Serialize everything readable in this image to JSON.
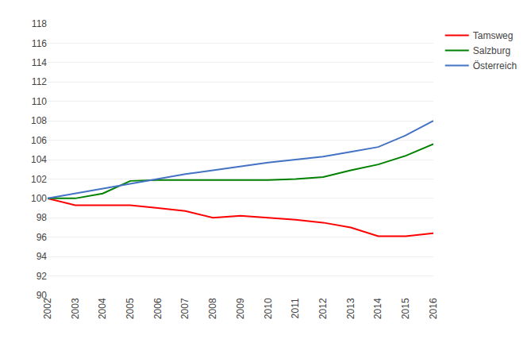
{
  "chart_data": {
    "type": "line",
    "x": [
      2002,
      2003,
      2004,
      2005,
      2006,
      2007,
      2008,
      2009,
      2010,
      2011,
      2012,
      2013,
      2014,
      2015,
      2016
    ],
    "xlim": [
      2002,
      2016
    ],
    "xticks": [
      2002,
      2003,
      2004,
      2005,
      2006,
      2007,
      2008,
      2009,
      2010,
      2011,
      2012,
      2013,
      2014,
      2015,
      2016
    ],
    "ylim": [
      90,
      118
    ],
    "yticks": [
      90,
      92,
      94,
      96,
      98,
      100,
      102,
      104,
      106,
      108,
      110,
      112,
      114,
      116,
      118
    ],
    "grid": true,
    "legend": "right",
    "series": [
      {
        "name": "Tamsweg",
        "color": "#ff0000",
        "values": [
          100.0,
          99.3,
          99.3,
          99.3,
          99.0,
          98.7,
          98.0,
          98.2,
          98.0,
          97.8,
          97.5,
          97.0,
          96.1,
          96.1,
          96.4
        ]
      },
      {
        "name": "Salzburg",
        "color": "#008000",
        "values": [
          100.0,
          100.0,
          100.5,
          101.8,
          101.9,
          101.9,
          101.9,
          101.9,
          101.9,
          102.0,
          102.2,
          102.9,
          103.5,
          104.4,
          105.6
        ]
      },
      {
        "name": "Österreich",
        "color": "#4472c4",
        "values": [
          100.0,
          100.5,
          101.0,
          101.5,
          102.0,
          102.5,
          102.9,
          103.3,
          103.7,
          104.0,
          104.3,
          104.8,
          105.3,
          106.5,
          108.0
        ]
      }
    ]
  }
}
